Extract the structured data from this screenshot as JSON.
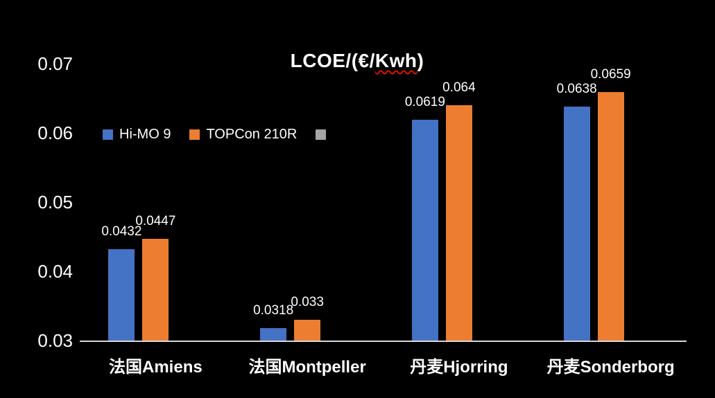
{
  "chart_data": {
    "type": "bar",
    "title": "LCOE/(€/Kwh)",
    "title_parts": {
      "prefix": "LCOE/(€/",
      "underlined_word": "Kwh",
      "suffix": ")"
    },
    "categories": [
      "法国Amiens",
      "法国Montpeller",
      "丹麦Hjorring",
      "丹麦Sonderborg"
    ],
    "series": [
      {
        "name": "Hi-MO 9",
        "color": "#4472C4",
        "values": [
          0.0432,
          0.0318,
          0.0619,
          0.0638
        ],
        "labels": [
          "0.0432",
          "0.0318",
          "0.0619",
          "0.0638"
        ]
      },
      {
        "name": "TOPCon 210R",
        "color": "#ED7D31",
        "values": [
          0.0447,
          0.033,
          0.064,
          0.0659
        ],
        "labels": [
          "0.0447",
          "0.033",
          "0.064",
          "0.0659"
        ]
      },
      {
        "name": "",
        "color": "#A5A5A5",
        "values": [],
        "labels": []
      }
    ],
    "y_axis": {
      "min": 0.03,
      "max": 0.07,
      "step": 0.01,
      "ticks": [
        {
          "value": 0.07,
          "label": "0.07"
        },
        {
          "value": 0.06,
          "label": "0.06"
        },
        {
          "value": 0.05,
          "label": "0.05"
        },
        {
          "value": 0.04,
          "label": "0.04"
        },
        {
          "value": 0.03,
          "label": "0.03"
        }
      ]
    },
    "legend_position": "inside-top-left",
    "grid": false,
    "colors": {
      "background": "#000000",
      "text": "#FFFFFF",
      "axis_line": "#D9D9D9",
      "misspell_underline": "#E01000"
    }
  }
}
